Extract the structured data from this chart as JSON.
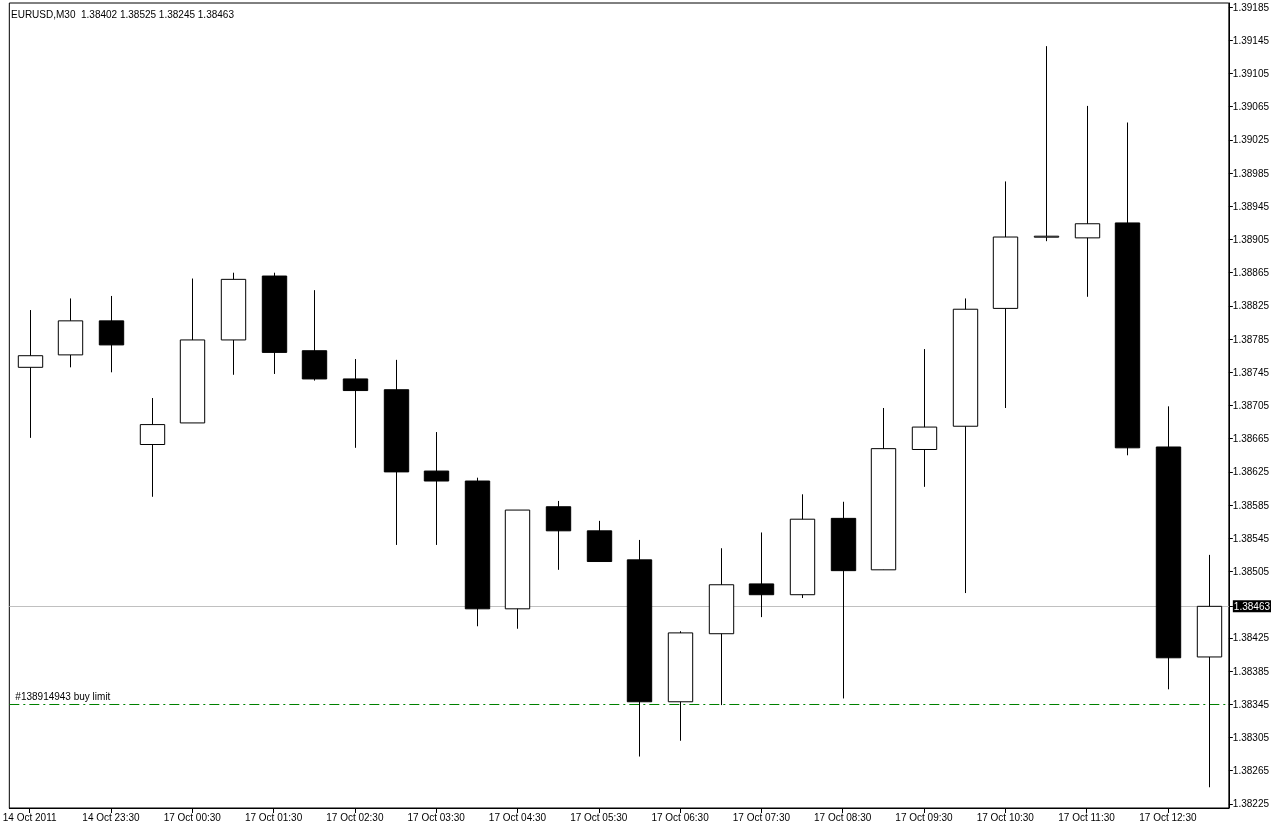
{
  "chart_data": {
    "type": "candlestick",
    "title": "EURUSD,M30  1.38402 1.38525 1.38245 1.38463",
    "categories": [
      "14 Oct 2011",
      null,
      "14 Oct 23:30",
      null,
      "17 Oct 00:30",
      null,
      "17 Oct 01:30",
      null,
      "17 Oct 02:30",
      null,
      "17 Oct 03:30",
      null,
      "17 Oct 04:30",
      null,
      "17 Oct 05:30",
      null,
      "17 Oct 06:30",
      null,
      "17 Oct 07:30",
      null,
      "17 Oct 08:30",
      null,
      "17 Oct 09:30",
      null,
      "17 Oct 10:30",
      null,
      "17 Oct 11:30",
      null,
      "17 Oct 12:30",
      null
    ],
    "color": "#000000",
    "ohlc": [
      [
        1.38751,
        1.3882,
        1.38666,
        1.38765
      ],
      [
        1.38766,
        1.38834,
        1.38751,
        1.38807
      ],
      [
        1.38807,
        1.38837,
        1.38745,
        1.38778
      ],
      [
        1.38658,
        1.38714,
        1.38595,
        1.38682
      ],
      [
        1.38684,
        1.38858,
        1.38684,
        1.38784
      ],
      [
        1.38784,
        1.38865,
        1.38742,
        1.38857
      ],
      [
        1.38861,
        1.38865,
        1.38743,
        1.38769
      ],
      [
        1.38771,
        1.38844,
        1.38735,
        1.38737
      ],
      [
        1.38737,
        1.38761,
        1.38654,
        1.38723
      ],
      [
        1.38724,
        1.3876,
        1.38537,
        1.38625
      ],
      [
        1.38626,
        1.38673,
        1.38537,
        1.38614
      ],
      [
        1.38614,
        1.38618,
        1.38439,
        1.3846
      ],
      [
        1.3846,
        1.38579,
        1.38436,
        1.38579
      ],
      [
        1.38583,
        1.3859,
        1.38507,
        1.38554
      ],
      [
        1.38554,
        1.38566,
        1.38517,
        1.38517
      ],
      [
        1.38519,
        1.38543,
        1.38282,
        1.38348
      ],
      [
        1.38348,
        1.38433,
        1.38301,
        1.38431
      ],
      [
        1.3843,
        1.38533,
        1.38344,
        1.38489
      ],
      [
        1.3849,
        1.38552,
        1.3845,
        1.38477
      ],
      [
        1.38477,
        1.38598,
        1.38473,
        1.38568
      ],
      [
        1.38569,
        1.38589,
        1.38352,
        1.38506
      ],
      [
        1.38507,
        1.38702,
        1.38507,
        1.38653
      ],
      [
        1.38652,
        1.38773,
        1.38607,
        1.38679
      ],
      [
        1.3868,
        1.38834,
        1.38479,
        1.38821
      ],
      [
        1.38822,
        1.38975,
        1.38702,
        1.38908
      ],
      [
        1.38909,
        1.39138,
        1.38903,
        1.38909
      ],
      [
        1.38907,
        1.39066,
        1.38836,
        1.38924
      ],
      [
        1.38925,
        1.39046,
        1.38645,
        1.38654
      ],
      [
        1.38655,
        1.38704,
        1.38363,
        1.38401
      ],
      [
        1.38402,
        1.38525,
        1.38245,
        1.38463
      ]
    ],
    "ylim": [
      1.3822,
      1.3919
    ],
    "yticks": [
      1.38225,
      1.38265,
      1.38305,
      1.38345,
      1.38385,
      1.38425,
      1.38463,
      1.38505,
      1.38545,
      1.38585,
      1.38625,
      1.38665,
      1.38705,
      1.38745,
      1.38785,
      1.38825,
      1.38865,
      1.38905,
      1.38945,
      1.38985,
      1.39025,
      1.39065,
      1.39105,
      1.39145,
      1.39185
    ],
    "ref_lines": [
      {
        "axis": "y",
        "value": 1.38463,
        "color": "#c0c0c0",
        "line_style": "solid"
      },
      {
        "axis": "y",
        "value": 1.38345,
        "color": "#008000",
        "line_style": "dashed",
        "label": "#138914943 buy limit"
      }
    ],
    "grid": false
  }
}
